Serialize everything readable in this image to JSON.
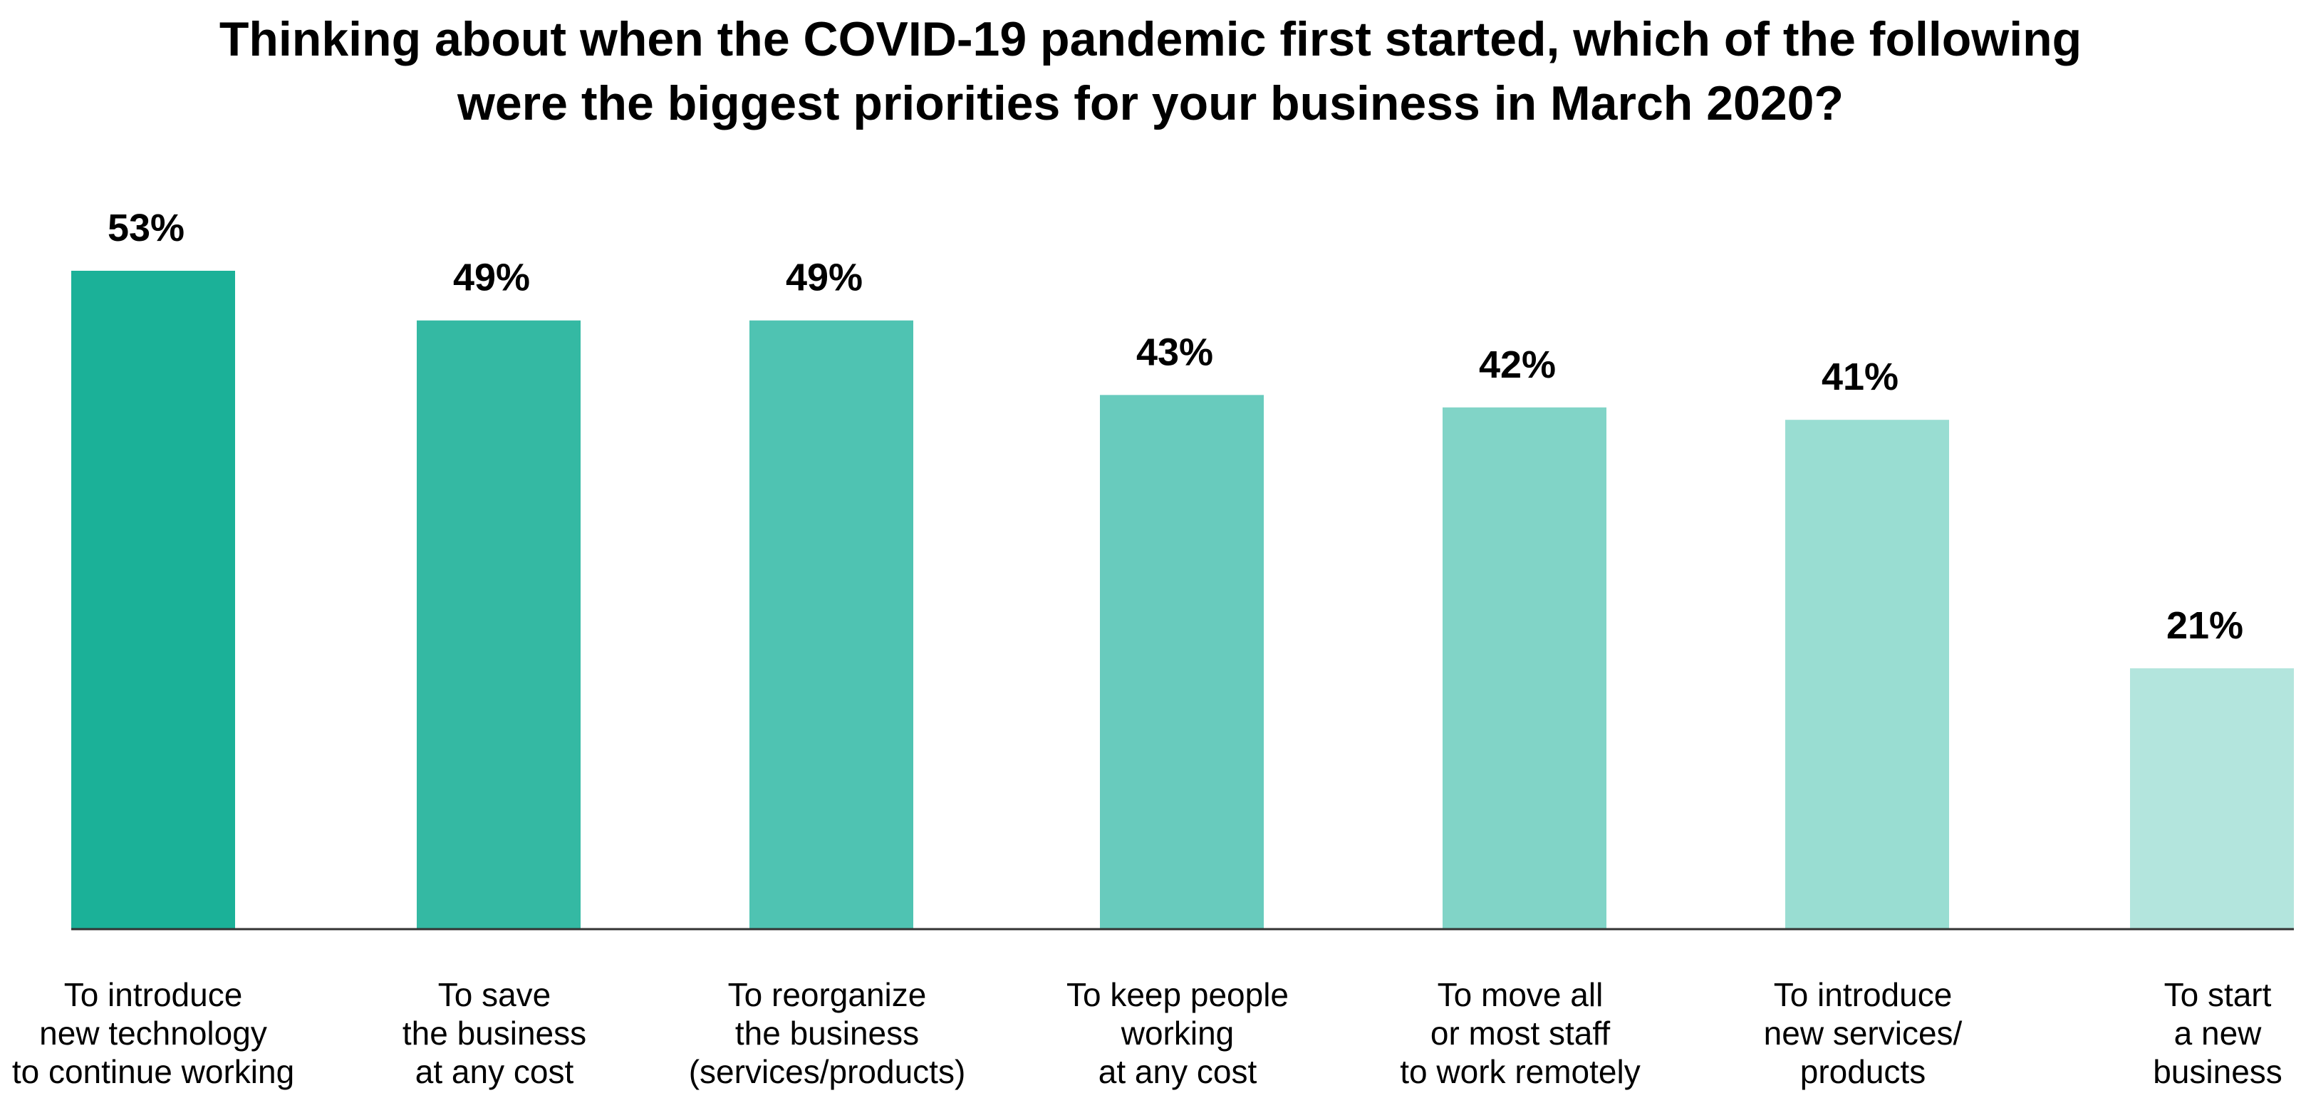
{
  "chart_data": {
    "type": "bar",
    "title_lines": [
      "Thinking about when the COVID-19 pandemic first started, which of the following",
      "were the biggest priorities for your business in March 2020?"
    ],
    "categories": [
      [
        "To introduce",
        "new technology",
        "to continue working"
      ],
      [
        "To save",
        "the business",
        "at any cost"
      ],
      [
        "To reorganize",
        "the business",
        "(services/products)"
      ],
      [
        "To keep people",
        "working",
        "at any cost"
      ],
      [
        "To move all",
        "or most staff",
        "to work remotely"
      ],
      [
        "To introduce",
        "new services/",
        "products"
      ],
      [
        "To start",
        "a new",
        "business"
      ]
    ],
    "values": [
      53,
      49,
      49,
      43,
      42,
      41,
      21
    ],
    "value_labels": [
      "53%",
      "49%",
      "49%",
      "43%",
      "42%",
      "41%",
      "21%"
    ],
    "colors": [
      "#1bb198",
      "#34b9a3",
      "#4fc3b2",
      "#68cbbd",
      "#81d4c7",
      "#99ddd2",
      "#b3e5dd"
    ],
    "baseline_color": "#333333",
    "xlabel": "",
    "ylabel": "",
    "ylim": [
      0,
      53
    ],
    "grid": false,
    "legend": "none"
  }
}
